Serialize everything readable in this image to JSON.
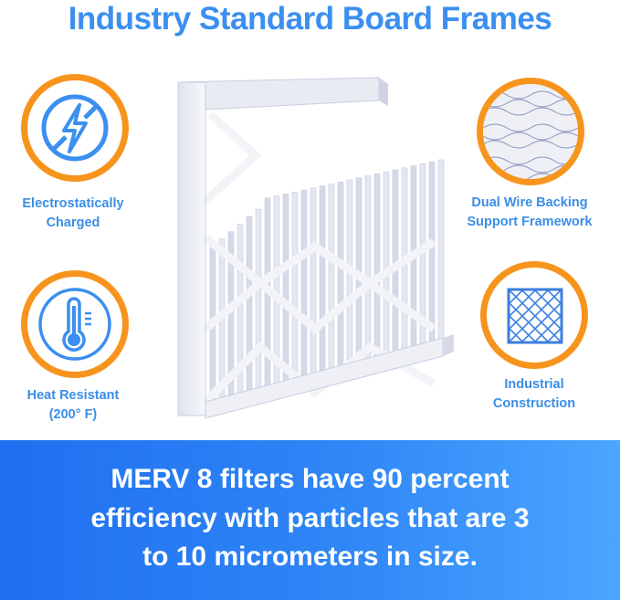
{
  "title": "Industry Standard Board Frames",
  "features": [
    {
      "label_line1": "Electrostatically",
      "label_line2": "Charged",
      "icon": "no-static-lightning-icon"
    },
    {
      "label_line1": "Heat Resistant",
      "label_line2": "(200° F)",
      "icon": "thermometer-icon"
    },
    {
      "label_line1": "Dual Wire Backing",
      "label_line2": "Support Framework",
      "icon": "wire-mesh-closeup-icon"
    },
    {
      "label_line1": "Industrial",
      "label_line2": "Construction",
      "icon": "grid-frame-icon"
    }
  ],
  "banner": {
    "line1": "MERV 8 filters have 90 percent",
    "line2": "efficiency with particles that are 3",
    "line3": "to 10 micrometers in size."
  },
  "colors": {
    "accent_blue": "#3b8ff0",
    "ring_orange": "#f7941d",
    "banner_start": "#1f6ff0",
    "banner_end": "#4aa6ff"
  }
}
